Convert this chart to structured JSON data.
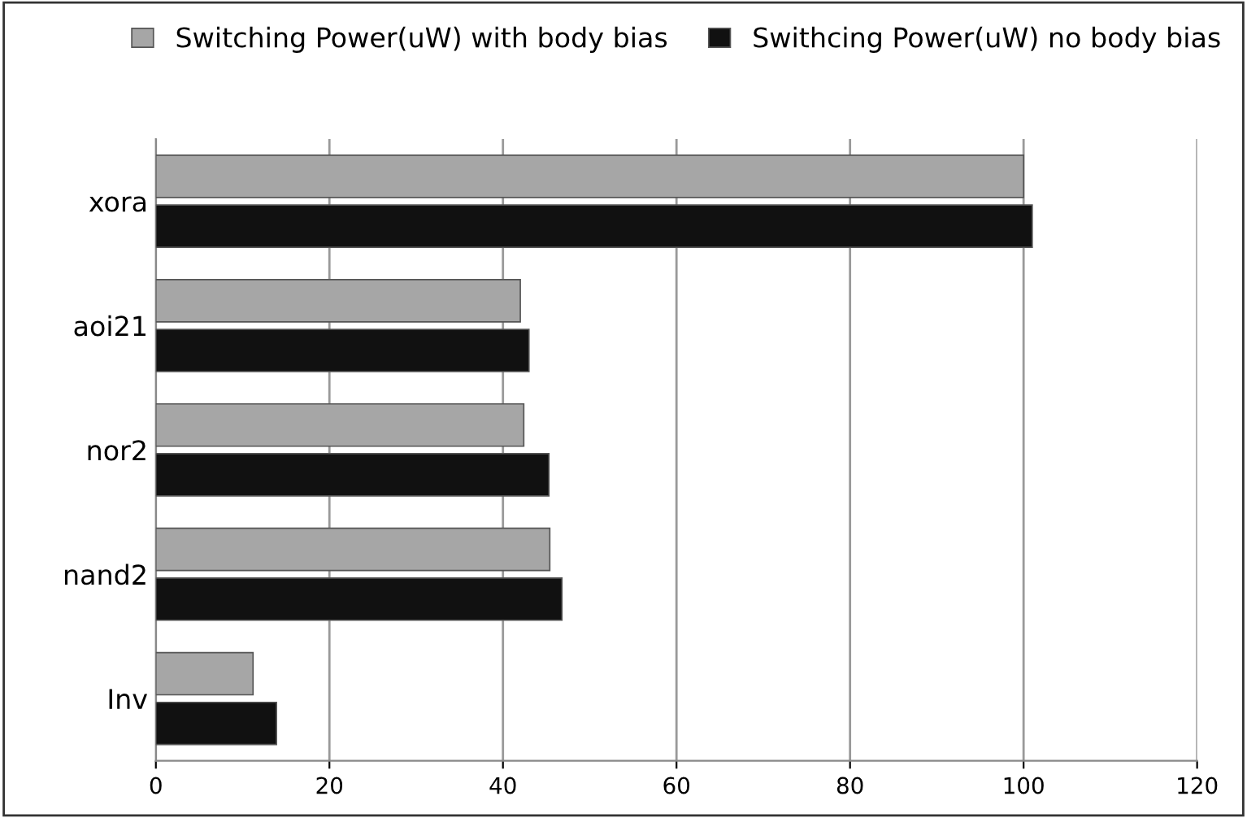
{
  "chart_data": {
    "type": "bar",
    "orientation": "horizontal",
    "categories": [
      "xora",
      "aoi21",
      "nor2",
      "nand2",
      "Inv"
    ],
    "series": [
      {
        "name": "Switching Power(uW) with body bias",
        "color": "#a6a6a6",
        "values": [
          100,
          42,
          42.4,
          45.4,
          11.2
        ]
      },
      {
        "name": "Swithcing Power(uW) no body bias",
        "color": "#111111",
        "values": [
          101,
          43,
          45.3,
          46.8,
          13.9
        ]
      }
    ],
    "xlim": [
      0,
      120
    ],
    "xticks": [
      0,
      20,
      40,
      60,
      80,
      100,
      120
    ],
    "grid": "x",
    "legend": "top"
  }
}
